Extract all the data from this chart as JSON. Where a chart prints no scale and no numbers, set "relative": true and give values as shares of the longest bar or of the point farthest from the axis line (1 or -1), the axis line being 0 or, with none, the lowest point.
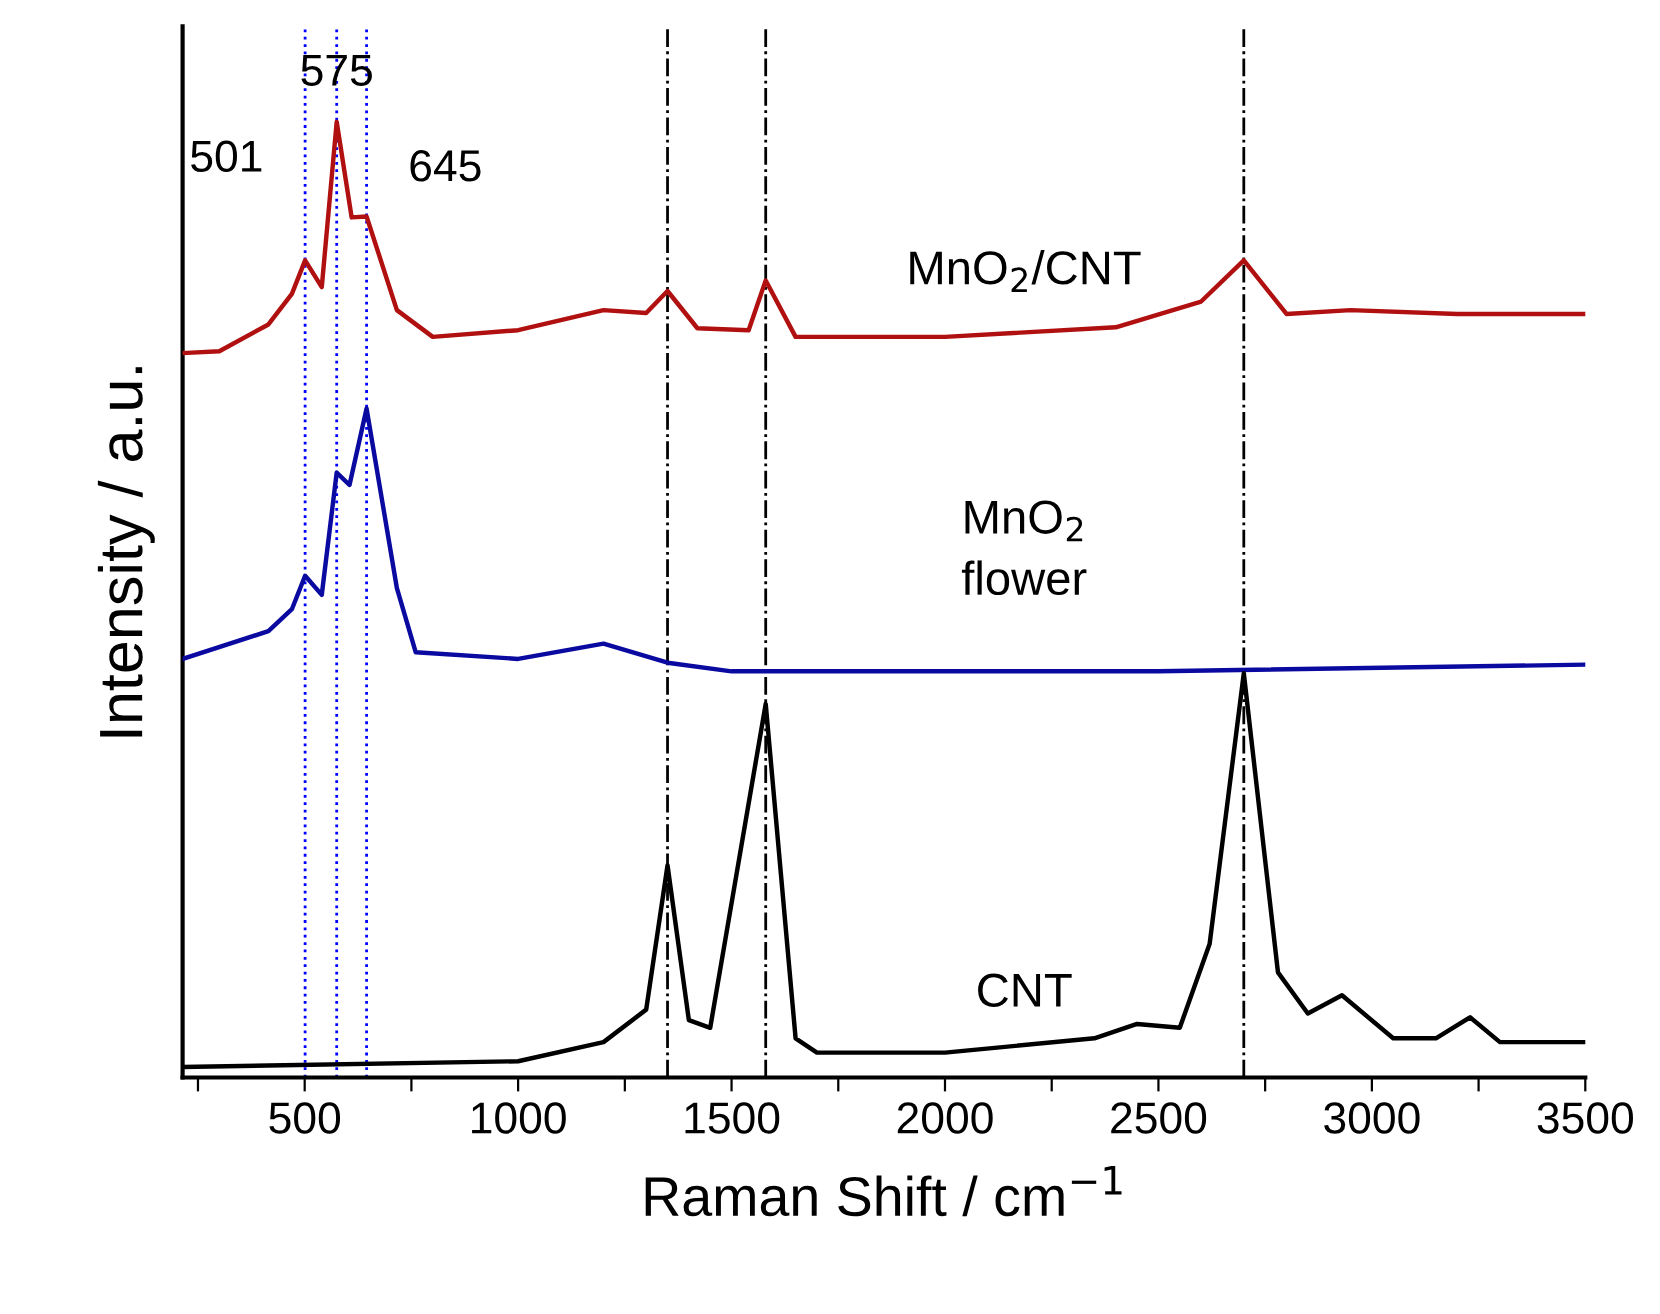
{
  "chart_data": {
    "type": "line",
    "relative": true,
    "xlabel": "Raman Shift / cm$^{−1}$",
    "ylabel": "Intensity / a.u.",
    "xlim": [
      214,
      3500
    ],
    "xticks": [
      {
        "value": 250,
        "label": null
      },
      500,
      {
        "value": 750,
        "label": null
      },
      1000,
      {
        "value": 1250,
        "label": null
      },
      1500,
      {
        "value": 1750,
        "label": null
      },
      2000,
      {
        "value": 2250,
        "label": null
      },
      2500,
      {
        "value": 2750,
        "label": null
      },
      3000,
      {
        "value": 3250,
        "label": null
      },
      3500
    ],
    "tick_labels": "x",
    "grid": false,
    "legend": false,
    "marker": "none",
    "line_style": "solid",
    "series": [
      {
        "name": "MnO$_{2}$/CNT",
        "color": "#b01010",
        "x": [
          214,
          300,
          415,
          470,
          501,
          540,
          575,
          610,
          645,
          716,
          800,
          1000,
          1200,
          1300,
          1350,
          1420,
          1540,
          1580,
          1650,
          2000,
          2400,
          2600,
          2700,
          2800,
          2950,
          3200,
          3500
        ],
        "values": [
          0.758,
          0.76,
          0.788,
          0.82,
          0.855,
          0.827,
          1.0,
          0.9,
          0.901,
          0.803,
          0.775,
          0.782,
          0.803,
          0.8,
          0.823,
          0.784,
          0.782,
          0.834,
          0.775,
          0.775,
          0.785,
          0.812,
          0.855,
          0.799,
          0.803,
          0.799,
          0.799
        ]
      },
      {
        "name": "MnO$_{2}$\nflower",
        "color": "#0a0aa0",
        "x": [
          214,
          415,
          470,
          501,
          540,
          575,
          605,
          645,
          716,
          760,
          1000,
          1200,
          1350,
          1500,
          2500,
          3500
        ],
        "values": [
          0.438,
          0.467,
          0.49,
          0.525,
          0.505,
          0.633,
          0.62,
          0.7,
          0.512,
          0.445,
          0.438,
          0.454,
          0.434,
          0.425,
          0.425,
          0.432
        ]
      },
      {
        "name": "CNT",
        "color": "#000000",
        "x": [
          214,
          1000,
          1200,
          1300,
          1350,
          1400,
          1450,
          1580,
          1650,
          1700,
          2000,
          2350,
          2450,
          2550,
          2620,
          2700,
          2780,
          2850,
          2930,
          3050,
          3150,
          3230,
          3300,
          3500
        ],
        "values": [
          0.011,
          0.017,
          0.037,
          0.071,
          0.222,
          0.06,
          0.052,
          0.391,
          0.041,
          0.026,
          0.026,
          0.041,
          0.056,
          0.052,
          0.14,
          0.423,
          0.11,
          0.067,
          0.086,
          0.041,
          0.041,
          0.063,
          0.037,
          0.037
        ]
      }
    ],
    "ref_lines": [
      {
        "axis": "x",
        "value": 501,
        "color": "#0000ff",
        "line_style": "dotted",
        "label": "501"
      },
      {
        "axis": "x",
        "value": 575,
        "color": "#0000ff",
        "line_style": "dotted",
        "label": "575"
      },
      {
        "axis": "x",
        "value": 645,
        "color": "#0000ff",
        "line_style": "dotted",
        "label": "645"
      },
      {
        "axis": "x",
        "value": 1350,
        "color": "#000000",
        "line_style": "dashdot"
      },
      {
        "axis": "x",
        "value": 1580,
        "color": "#000000",
        "line_style": "dashdot"
      },
      {
        "axis": "x",
        "value": 2700,
        "color": "#000000",
        "line_style": "dashdot"
      }
    ]
  }
}
